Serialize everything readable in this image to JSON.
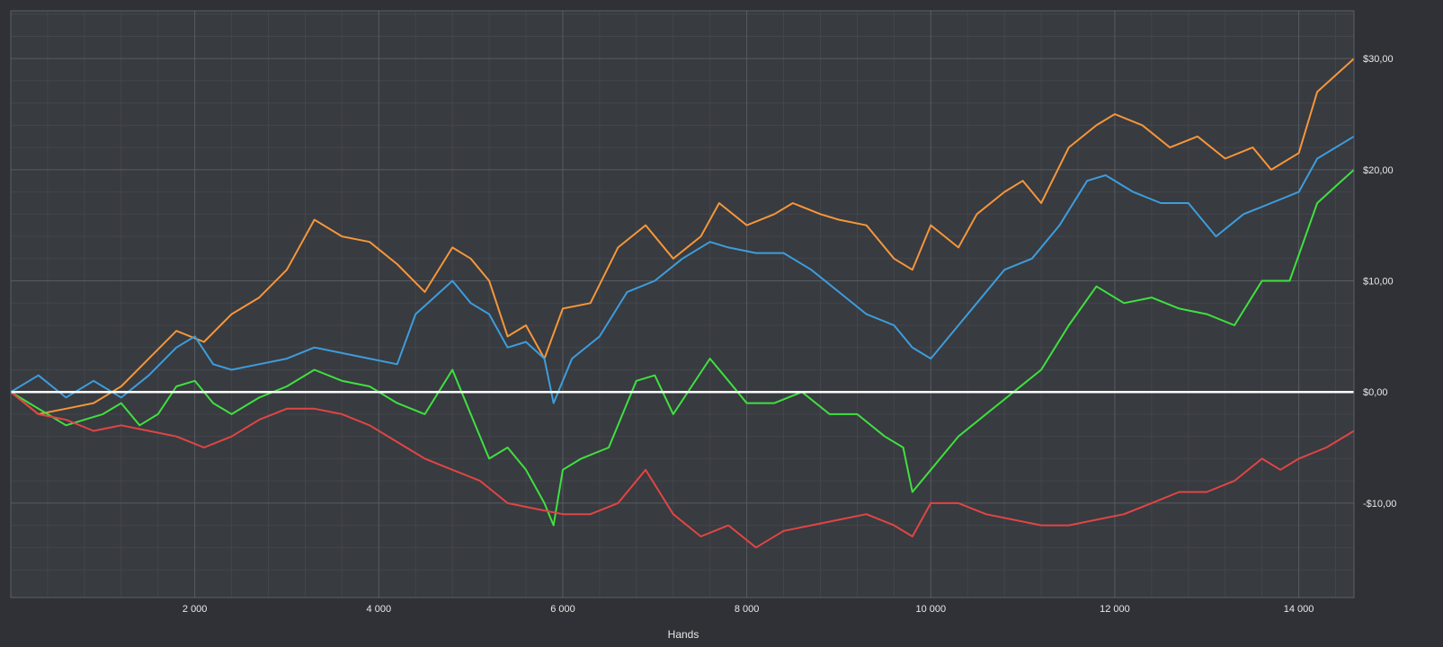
{
  "chart_data": {
    "type": "line",
    "title": "",
    "xlabel": "Hands",
    "ylabel": "",
    "xlim": [
      0,
      14600
    ],
    "ylim": [
      -18.5,
      34.3
    ],
    "x_ticks": [
      2000,
      4000,
      6000,
      8000,
      10000,
      12000,
      14000
    ],
    "x_tick_labels": [
      "2 000",
      "4 000",
      "6 000",
      "8 000",
      "10 000",
      "12 000",
      "14 000"
    ],
    "y_ticks": [
      30,
      20,
      10,
      0,
      -10
    ],
    "y_tick_labels": [
      "$30,00",
      "$20,00",
      "$10,00",
      "$0,00",
      "-$10,00"
    ],
    "grid": true,
    "legend": "none",
    "background": "#2f3136",
    "plot_background": "#383b40",
    "zero_line_color": "#ffffff",
    "series": [
      {
        "color": "#f5963a",
        "x": [
          0,
          300,
          600,
          900,
          1200,
          1500,
          1800,
          2100,
          2400,
          2700,
          3000,
          3300,
          3600,
          3900,
          4200,
          4500,
          4800,
          5000,
          5200,
          5400,
          5600,
          5800,
          6000,
          6300,
          6600,
          6900,
          7200,
          7500,
          7700,
          8000,
          8300,
          8500,
          8800,
          9000,
          9300,
          9600,
          9800,
          10000,
          10300,
          10500,
          10800,
          11000,
          11200,
          11500,
          11800,
          12000,
          12300,
          12600,
          12900,
          13200,
          13500,
          13700,
          14000,
          14200,
          14400,
          14600
        ],
        "y": [
          0,
          -2,
          -1.5,
          -1,
          0.5,
          3,
          5.5,
          4.5,
          7,
          8.5,
          11,
          15.5,
          14,
          13.5,
          11.5,
          9,
          13,
          12,
          10,
          5,
          6,
          3,
          7.5,
          8,
          13,
          15,
          12,
          14,
          17,
          15,
          16,
          17,
          16,
          15.5,
          15,
          12,
          11,
          15,
          13,
          16,
          18,
          19,
          17,
          22,
          24,
          25,
          24,
          22,
          23,
          21,
          22,
          20,
          21.5,
          27,
          28.5,
          30
        ]
      },
      {
        "color": "#3d9ddc",
        "x": [
          0,
          300,
          600,
          900,
          1200,
          1500,
          1800,
          2000,
          2200,
          2400,
          2700,
          3000,
          3300,
          3600,
          3900,
          4200,
          4400,
          4600,
          4800,
          5000,
          5200,
          5400,
          5600,
          5800,
          5900,
          6100,
          6400,
          6700,
          7000,
          7300,
          7600,
          7800,
          8100,
          8400,
          8700,
          9000,
          9300,
          9600,
          9800,
          10000,
          10200,
          10500,
          10800,
          11100,
          11400,
          11700,
          11900,
          12200,
          12500,
          12800,
          13100,
          13400,
          13700,
          14000,
          14200,
          14600
        ],
        "y": [
          0,
          1.5,
          -0.5,
          1,
          -0.5,
          1.5,
          4,
          5,
          2.5,
          2,
          2.5,
          3,
          4,
          3.5,
          3,
          2.5,
          7,
          8.5,
          10,
          8,
          7,
          4,
          4.5,
          3,
          -1,
          3,
          5,
          9,
          10,
          12,
          13.5,
          13,
          12.5,
          12.5,
          11,
          9,
          7,
          6,
          4,
          3,
          5,
          8,
          11,
          12,
          15,
          19,
          19.5,
          18,
          17,
          17,
          14,
          16,
          17,
          18,
          21,
          23
        ]
      },
      {
        "color": "#3fe03f",
        "x": [
          0,
          200,
          400,
          600,
          800,
          1000,
          1200,
          1400,
          1600,
          1800,
          2000,
          2200,
          2400,
          2700,
          3000,
          3300,
          3600,
          3900,
          4200,
          4500,
          4800,
          5000,
          5200,
          5400,
          5600,
          5800,
          5900,
          6000,
          6200,
          6500,
          6800,
          7000,
          7200,
          7400,
          7600,
          7800,
          8000,
          8300,
          8600,
          8900,
          9200,
          9500,
          9700,
          9800,
          10000,
          10300,
          10600,
          10900,
          11200,
          11500,
          11800,
          12100,
          12400,
          12700,
          13000,
          13300,
          13600,
          13900,
          14200,
          14400,
          14600
        ],
        "y": [
          0,
          -1,
          -2,
          -3,
          -2.5,
          -2,
          -1,
          -3,
          -2,
          0.5,
          1,
          -1,
          -2,
          -0.5,
          0.5,
          2,
          1,
          0.5,
          -1,
          -2,
          2,
          -2,
          -6,
          -5,
          -7,
          -10,
          -12,
          -7,
          -6,
          -5,
          1,
          1.5,
          -2,
          0.5,
          3,
          1,
          -1,
          -1,
          0,
          -2,
          -2,
          -4,
          -5,
          -9,
          -7,
          -4,
          -2,
          0,
          2,
          6,
          9.5,
          8,
          8.5,
          7.5,
          7,
          6,
          10,
          10,
          17,
          18.5,
          20
        ]
      },
      {
        "color": "#e04545",
        "x": [
          0,
          300,
          600,
          900,
          1200,
          1500,
          1800,
          2100,
          2400,
          2700,
          3000,
          3300,
          3600,
          3900,
          4200,
          4500,
          4800,
          5100,
          5400,
          5700,
          6000,
          6300,
          6600,
          6900,
          7200,
          7500,
          7800,
          8100,
          8400,
          8700,
          9000,
          9300,
          9600,
          9800,
          10000,
          10300,
          10600,
          10900,
          11200,
          11500,
          11800,
          12100,
          12400,
          12700,
          13000,
          13300,
          13600,
          13800,
          14000,
          14300,
          14600
        ],
        "y": [
          0,
          -2,
          -2.5,
          -3.5,
          -3,
          -3.5,
          -4,
          -5,
          -4,
          -2.5,
          -1.5,
          -1.5,
          -2,
          -3,
          -4.5,
          -6,
          -7,
          -8,
          -10,
          -10.5,
          -11,
          -11,
          -10,
          -7,
          -11,
          -13,
          -12,
          -14,
          -12.5,
          -12,
          -11.5,
          -11,
          -12,
          -13,
          -10,
          -10,
          -11,
          -11.5,
          -12,
          -12,
          -11.5,
          -11,
          -10,
          -9,
          -9,
          -8,
          -6,
          -7,
          -6,
          -5,
          -3.5
        ]
      },
      {
        "color": "#ffffff",
        "x": [
          0,
          14600
        ],
        "y": [
          0,
          0
        ]
      }
    ]
  }
}
